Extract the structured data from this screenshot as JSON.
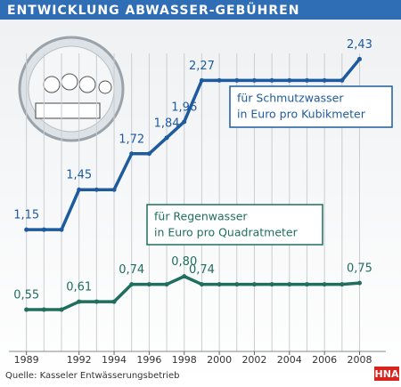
{
  "chart_data": {
    "type": "line",
    "title": "ENTWICKLUNG ABWASSER-GEBÜHREN",
    "source": "Quelle: Kasseler Entwässerungsbetrieb",
    "logo": "HNA",
    "x": [
      1989,
      1990,
      1991,
      1992,
      1993,
      1994,
      1995,
      1996,
      1997,
      1998,
      1999,
      2000,
      2001,
      2002,
      2003,
      2004,
      2005,
      2006,
      2007,
      2008
    ],
    "xlim": [
      1988,
      2009.5
    ],
    "xticks": [
      1989,
      1992,
      1994,
      1996,
      1998,
      2000,
      2002,
      2004,
      2006,
      2008
    ],
    "ylim": [
      0.27,
      2.74
    ],
    "grid": true,
    "series": [
      {
        "name": "für Schmutzwasser",
        "unit": "in Euro pro Kubikmeter",
        "color": "#1d5b9e",
        "values": [
          1.15,
          1.15,
          1.15,
          1.45,
          1.45,
          1.45,
          1.72,
          1.72,
          1.84,
          1.96,
          2.27,
          2.27,
          2.27,
          2.27,
          2.27,
          2.27,
          2.27,
          2.27,
          2.27,
          2.43
        ],
        "value_labels": [
          "1,15",
          null,
          null,
          "1,45",
          null,
          null,
          "1,72",
          null,
          "1,84",
          "1,96",
          "2,27",
          null,
          null,
          null,
          null,
          null,
          null,
          null,
          null,
          "2,43"
        ]
      },
      {
        "name": "für Regenwasser",
        "unit": "in Euro pro Quadratmeter",
        "color": "#1f6e5e",
        "values": [
          0.55,
          0.55,
          0.55,
          0.61,
          0.61,
          0.61,
          0.74,
          0.74,
          0.74,
          0.8,
          0.74,
          0.74,
          0.74,
          0.74,
          0.74,
          0.74,
          0.74,
          0.74,
          0.74,
          0.75
        ],
        "value_labels": [
          "0,55",
          null,
          null,
          "0,61",
          null,
          null,
          "0,74",
          null,
          null,
          "0,80",
          "0,74",
          null,
          null,
          null,
          null,
          null,
          null,
          null,
          null,
          "0,75"
        ]
      }
    ]
  }
}
